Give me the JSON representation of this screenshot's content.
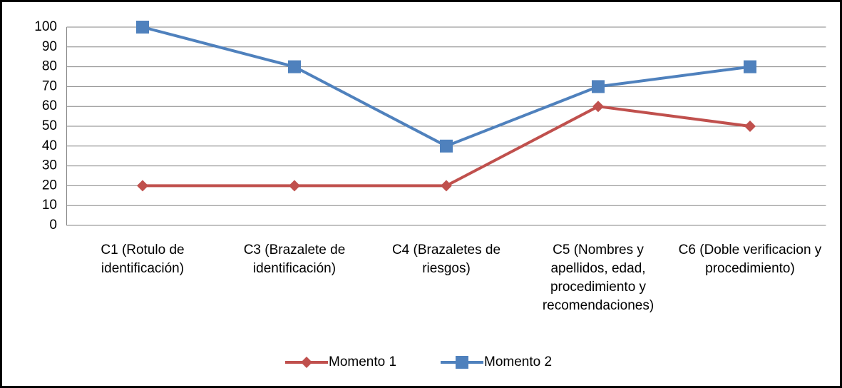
{
  "chart_data": {
    "type": "line",
    "categories": [
      "C1 (Rotulo de identificación)",
      "C3 (Brazalete de identificación)",
      "C4 (Brazaletes de riesgos)",
      "C5 (Nombres y apellidos, edad, procedimiento y recomendaciones)",
      "C6 (Doble verificacion y procedimiento)"
    ],
    "series": [
      {
        "name": "Momento 1",
        "color": "#c0504d",
        "marker": "diamond",
        "values": [
          20,
          20,
          20,
          60,
          50
        ]
      },
      {
        "name": "Momento 2",
        "color": "#4f81bd",
        "marker": "square",
        "values": [
          100,
          80,
          40,
          70,
          80
        ]
      }
    ],
    "ylim": [
      0,
      100
    ],
    "yticks": [
      0,
      10,
      20,
      30,
      40,
      50,
      60,
      70,
      80,
      90,
      100
    ],
    "grid": true,
    "legend": "bottom"
  }
}
